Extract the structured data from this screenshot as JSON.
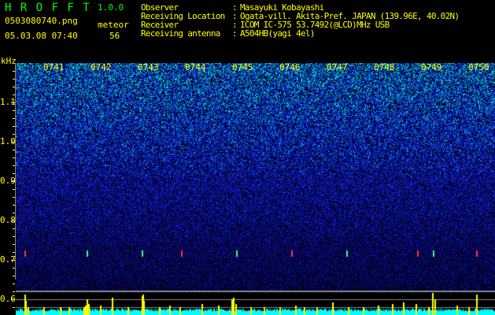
{
  "header": {
    "app_title": "H R O F F T",
    "version": "1.0.0",
    "filename": "0503080740.png",
    "datetime": "05.03.08 07:40",
    "meteor_label": "meteor",
    "meteor_count": "56"
  },
  "info": [
    {
      "label": "Observer",
      "value": "Masayuki Kobayashi"
    },
    {
      "label": "Receiving Location",
      "value": "Ogata-vill. Akita-Pref. JAPAN (139.96E, 40.02N)"
    },
    {
      "label": "Receiver",
      "value": "ICOM IC-575 53.7492(@LCD)MHz USB"
    },
    {
      "label": "Receiving antenna",
      "value": "A504HB(yagi 4el)"
    }
  ],
  "axis": {
    "unit": "kHz",
    "freq_ticks": [
      "1.1",
      "1.0",
      "0.9",
      "0.8",
      "0.7",
      "0.6"
    ],
    "time_ticks": [
      "0741",
      "0742",
      "0743",
      "0744",
      "0745",
      "0746",
      "0747",
      "0748",
      "0749",
      "0750"
    ]
  },
  "colors": {
    "text": "#ffff00",
    "title": "#00ff00",
    "histogram": "#00ffff",
    "meteor_spike": "#ffff00"
  }
}
